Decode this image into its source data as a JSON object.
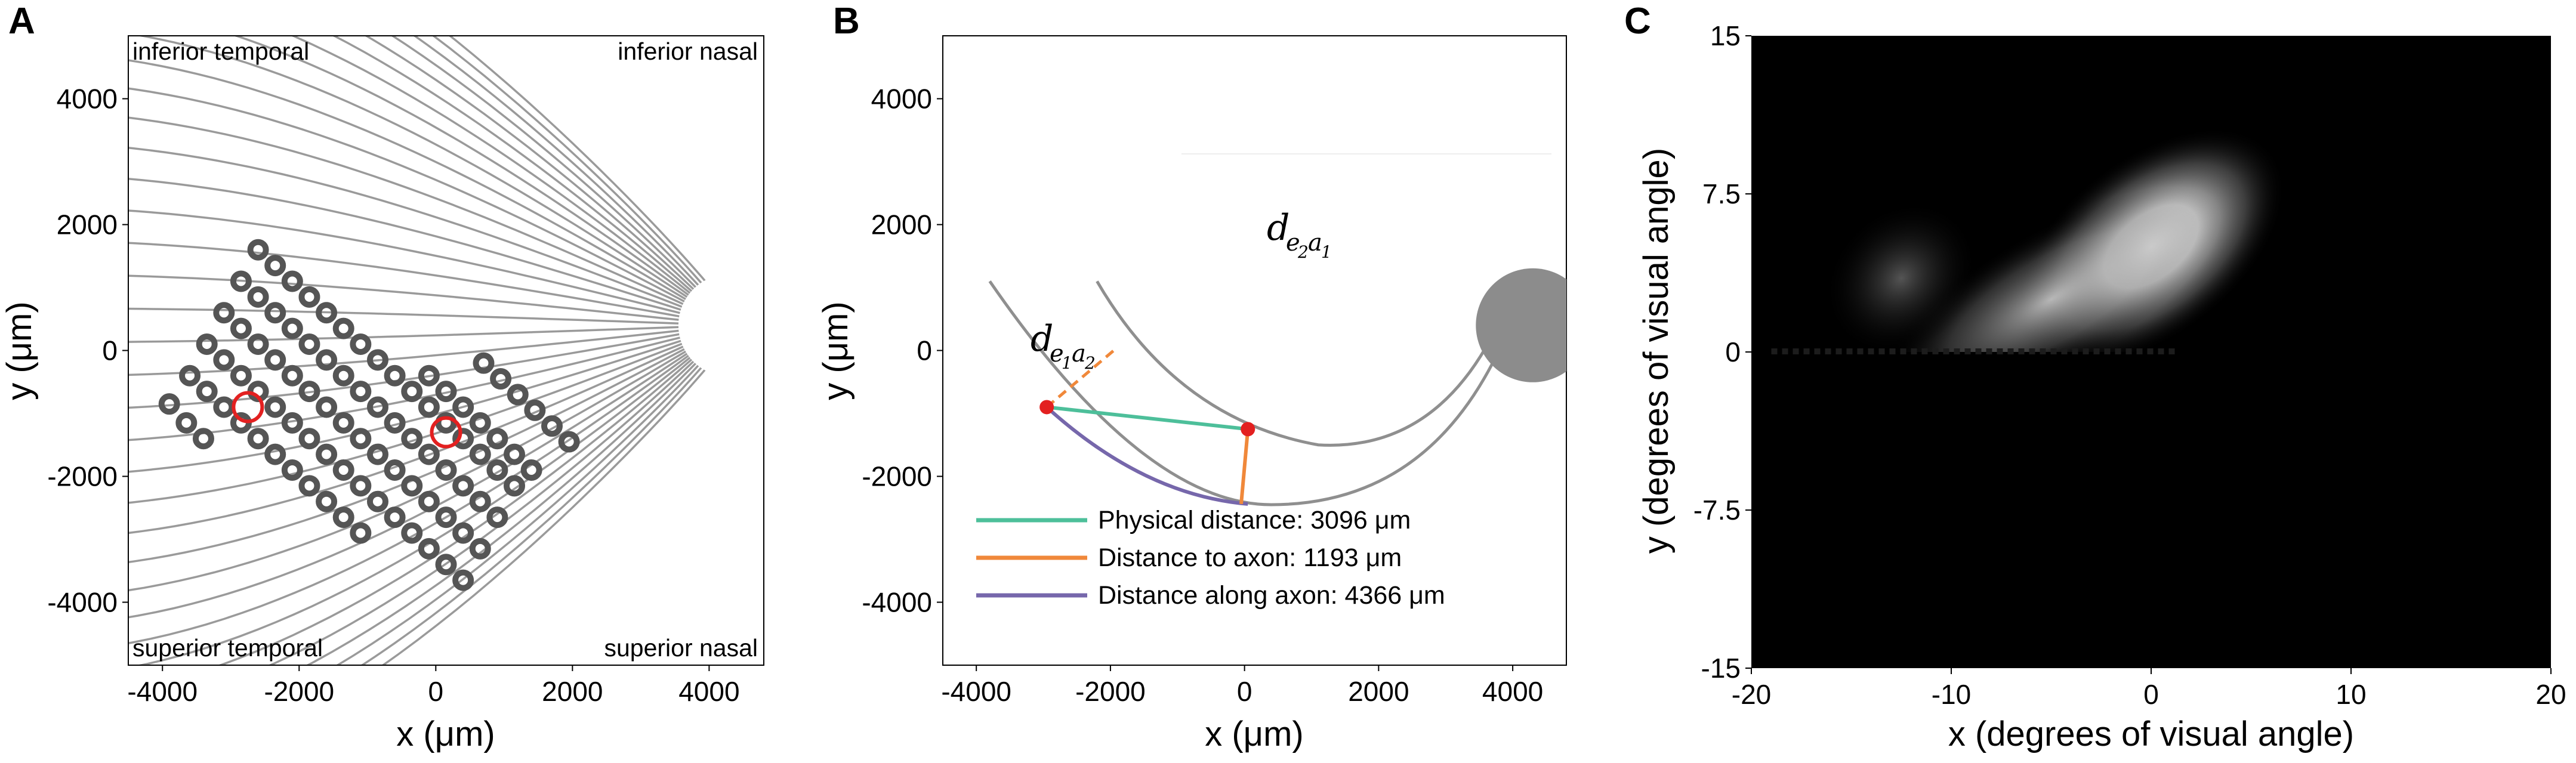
{
  "chart_data": [
    {
      "panel": "A",
      "type": "scatter",
      "xlabel": "x (μm)",
      "ylabel": "y (μm)",
      "xlim": [
        -4500,
        4800
      ],
      "ylim": [
        5000,
        -5000
      ],
      "xticks": [
        -4000,
        -2000,
        0,
        2000,
        4000
      ],
      "yticks": [
        -4000,
        -2000,
        0,
        2000,
        4000
      ],
      "xtick_labels": [
        "-4000",
        "-2000",
        "0",
        "2000",
        "4000"
      ],
      "ytick_labels": [
        "-4000",
        "-2000",
        "0",
        "2000",
        "4000"
      ],
      "corner_labels": [
        "inferior temporal",
        "inferior nasal",
        "superior temporal",
        "superior nasal"
      ],
      "optic_disc": {
        "x": 4300,
        "y": 400,
        "radius": 750
      },
      "axon_bundle_count": 36,
      "highlighted_electrodes": [
        [
          -2750,
          -900
        ],
        [
          150,
          -1300
        ]
      ],
      "electrodes": [
        [
          -3900,
          -850
        ],
        [
          -3650,
          -1150
        ],
        [
          -3400,
          -1400
        ],
        [
          -3600,
          -400
        ],
        [
          -3350,
          -650
        ],
        [
          -3100,
          -900
        ],
        [
          -2850,
          -1150
        ],
        [
          -2600,
          -1400
        ],
        [
          -2350,
          -1650
        ],
        [
          -2100,
          -1900
        ],
        [
          -1850,
          -2150
        ],
        [
          -1600,
          -2400
        ],
        [
          -1350,
          -2650
        ],
        [
          -1100,
          -2900
        ],
        [
          -3350,
          100
        ],
        [
          -3100,
          -150
        ],
        [
          -2850,
          -400
        ],
        [
          -2600,
          -650
        ],
        [
          -2350,
          -900
        ],
        [
          -2100,
          -1150
        ],
        [
          -1850,
          -1400
        ],
        [
          -1600,
          -1650
        ],
        [
          -1350,
          -1900
        ],
        [
          -1100,
          -2150
        ],
        [
          -850,
          -2400
        ],
        [
          -600,
          -2650
        ],
        [
          -350,
          -2900
        ],
        [
          -100,
          -3150
        ],
        [
          150,
          -3400
        ],
        [
          400,
          -3650
        ],
        [
          -3100,
          600
        ],
        [
          -2850,
          350
        ],
        [
          -2600,
          100
        ],
        [
          -2350,
          -150
        ],
        [
          -2100,
          -400
        ],
        [
          -1850,
          -650
        ],
        [
          -1600,
          -900
        ],
        [
          -1350,
          -1150
        ],
        [
          -1100,
          -1400
        ],
        [
          -850,
          -1650
        ],
        [
          -600,
          -1900
        ],
        [
          -350,
          -2150
        ],
        [
          -100,
          -2400
        ],
        [
          150,
          -2650
        ],
        [
          400,
          -2900
        ],
        [
          650,
          -3150
        ],
        [
          -2850,
          1100
        ],
        [
          -2600,
          850
        ],
        [
          -2350,
          600
        ],
        [
          -2100,
          350
        ],
        [
          -1850,
          100
        ],
        [
          -1600,
          -150
        ],
        [
          -1350,
          -400
        ],
        [
          -1100,
          -650
        ],
        [
          -850,
          -900
        ],
        [
          -600,
          -1150
        ],
        [
          -350,
          -1400
        ],
        [
          -100,
          -1650
        ],
        [
          150,
          -1900
        ],
        [
          400,
          -2150
        ],
        [
          650,
          -2400
        ],
        [
          900,
          -2650
        ],
        [
          -2600,
          1600
        ],
        [
          -2350,
          1350
        ],
        [
          -2100,
          1100
        ],
        [
          -1850,
          850
        ],
        [
          -1600,
          600
        ],
        [
          -1350,
          350
        ],
        [
          -1100,
          100
        ],
        [
          -850,
          -150
        ],
        [
          -600,
          -400
        ],
        [
          -350,
          -650
        ],
        [
          -100,
          -900
        ],
        [
          150,
          -1150
        ],
        [
          400,
          -1400
        ],
        [
          650,
          -1650
        ],
        [
          900,
          -1900
        ],
        [
          1150,
          -2150
        ],
        [
          -100,
          -400
        ],
        [
          150,
          -650
        ],
        [
          400,
          -900
        ],
        [
          650,
          -1150
        ],
        [
          900,
          -1400
        ],
        [
          1150,
          -1650
        ],
        [
          1400,
          -1900
        ],
        [
          700,
          -200
        ],
        [
          950,
          -450
        ],
        [
          1200,
          -700
        ],
        [
          1450,
          -950
        ],
        [
          1700,
          -1200
        ],
        [
          1950,
          -1450
        ]
      ]
    },
    {
      "panel": "B",
      "type": "line",
      "xlabel": "x (μm)",
      "ylabel": "y (μm)",
      "xlim": [
        -4500,
        4800
      ],
      "ylim": [
        5000,
        -5000
      ],
      "xticks": [
        -4000,
        -2000,
        0,
        2000,
        4000
      ],
      "yticks": [
        -4000,
        -2000,
        0,
        2000,
        4000
      ],
      "xtick_labels": [
        "-4000",
        "-2000",
        "0",
        "2000",
        "4000"
      ],
      "ytick_labels": [
        "-4000",
        "-2000",
        "0",
        "2000",
        "4000"
      ],
      "optic_disc": {
        "x": 4300,
        "y": 400,
        "radius": 850
      },
      "electrode_1": {
        "x": -2950,
        "y": -900
      },
      "electrode_2": {
        "x": 50,
        "y": -1250
      },
      "annotation_e2a1": {
        "base": "d",
        "sub1": "e",
        "sub1b": "2",
        "sub2": "a",
        "sub2b": "1"
      },
      "annotation_e1a2": {
        "base": "d",
        "sub1": "e",
        "sub1b": "1",
        "sub2": "a",
        "sub2b": "2"
      },
      "series": [
        {
          "name": "Physical distance: 3096 μm",
          "color": "#4dbf9a"
        },
        {
          "name": "Distance to axon: 1193 μm",
          "color": "#f0883a"
        },
        {
          "name": "Distance along axon: 4366 μm",
          "color": "#7667ab"
        }
      ]
    },
    {
      "panel": "C",
      "type": "heatmap",
      "xlabel": "x (degrees of visual angle)",
      "ylabel": "y (degrees of visual angle)",
      "xlim": [
        -20,
        20
      ],
      "ylim": [
        -15,
        15
      ],
      "xticks": [
        -20,
        -10,
        0,
        10,
        20
      ],
      "yticks": [
        15,
        7.5,
        0,
        -7.5,
        -15
      ],
      "xtick_labels": [
        "-20",
        "-10",
        "0",
        "10",
        "20"
      ],
      "ytick_labels": [
        "15",
        "7.5",
        "0",
        "-7.5",
        "-15"
      ],
      "blobs": [
        {
          "x": 0,
          "y": 5,
          "peak": 1.0
        },
        {
          "x": -5,
          "y": 2.5,
          "peak": 0.6
        },
        {
          "x": -12.5,
          "y": 3.5,
          "peak": 0.3
        }
      ]
    }
  ],
  "panel_letters": {
    "a": "A",
    "b": "B",
    "c": "C"
  },
  "colors": {
    "axon": "#9a9a9a",
    "electrode": "#555555",
    "highlight": "#e32020",
    "disc": "#8c8c8c",
    "background_c": "#000000"
  }
}
